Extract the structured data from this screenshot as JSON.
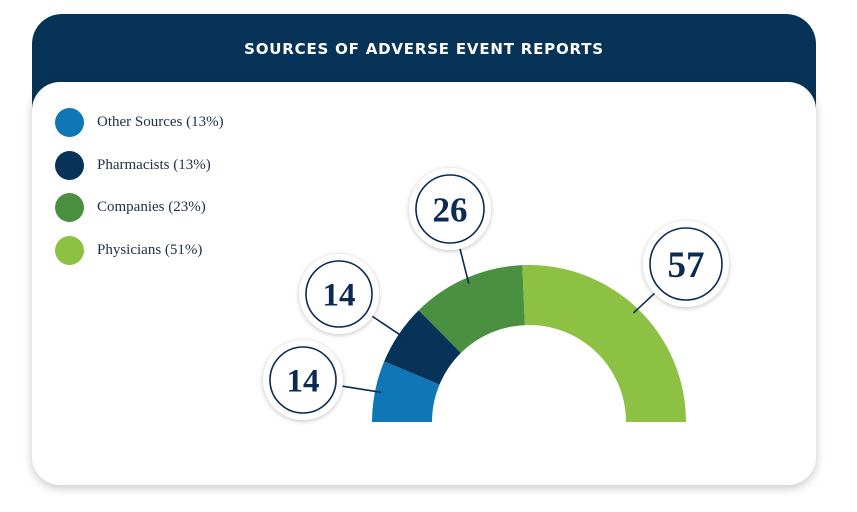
{
  "chart_data": {
    "type": "pie",
    "title": "SOURCES OF ADVERSE EVENT REPORTS",
    "slices": [
      {
        "label": "Other Sources (13%)",
        "value": 14,
        "color": "#0f77b5"
      },
      {
        "label": "Pharmacists (13%)",
        "value": 14,
        "color": "#073359"
      },
      {
        "label": "Companies (23%)",
        "value": 26,
        "color": "#4b8f40"
      },
      {
        "label": "Physicians (51%)",
        "value": 57,
        "color": "#8cc143"
      }
    ]
  }
}
